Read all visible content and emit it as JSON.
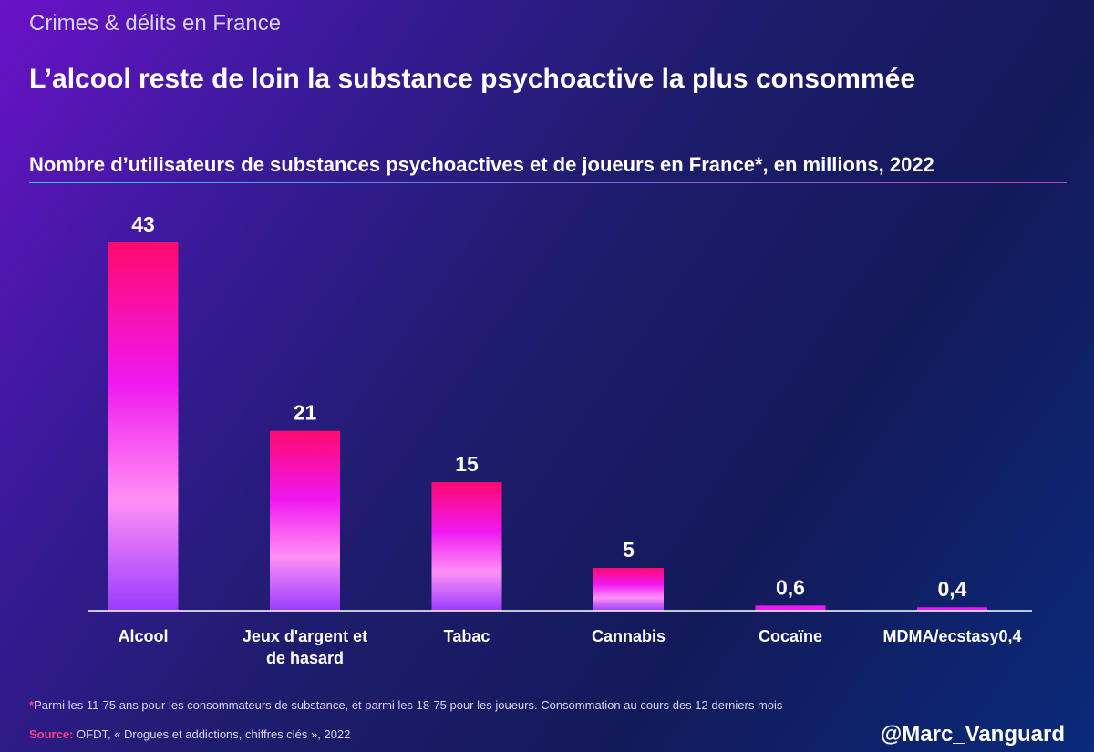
{
  "header": {
    "category": "Crimes & délits en France",
    "title": "L’alcool reste de loin la substance psychoactive la plus consommée"
  },
  "chart_data": {
    "type": "bar",
    "title": "Nombre d’utilisateurs de substances psychoactives et de joueurs en France*, en millions, 2022",
    "categories": [
      "Alcool",
      "Jeux d'argent et de hasard",
      "Tabac",
      "Cannabis",
      "Cocaïne",
      "MDMA/ecstasy0,4"
    ],
    "category_lines": [
      [
        "Alcool"
      ],
      [
        "Jeux d'argent et",
        "de hasard"
      ],
      [
        "Tabac"
      ],
      [
        "Cannabis"
      ],
      [
        "Cocaïne"
      ],
      [
        "MDMA/ecstasy0,4"
      ]
    ],
    "values": [
      43,
      21,
      15,
      5,
      0.6,
      0.4
    ],
    "value_labels": [
      "43",
      "21",
      "15",
      "5",
      "0,6",
      "0,4"
    ],
    "unit": "millions",
    "xlabel": "",
    "ylabel": "",
    "ylim": [
      0,
      43
    ],
    "grid": false,
    "colors": {
      "bar_top": "#ff0a6e",
      "bar_mid": "#f018f0",
      "bar_light": "#ff90f4",
      "bar_bottom": "#9a3cff",
      "axis": "#ffffff"
    }
  },
  "footer": {
    "note_marker": "*",
    "note": "Parmi les 11-75 ans pour les consommateurs de substance, et parmi les 18-75 pour les joueurs. Consommation au cours des 12 derniers mois",
    "source_label": "Source:",
    "source": "OFDT, « Drogues et addictions, chiffres clés », 2022",
    "handle": "@Marc_Vanguard"
  }
}
